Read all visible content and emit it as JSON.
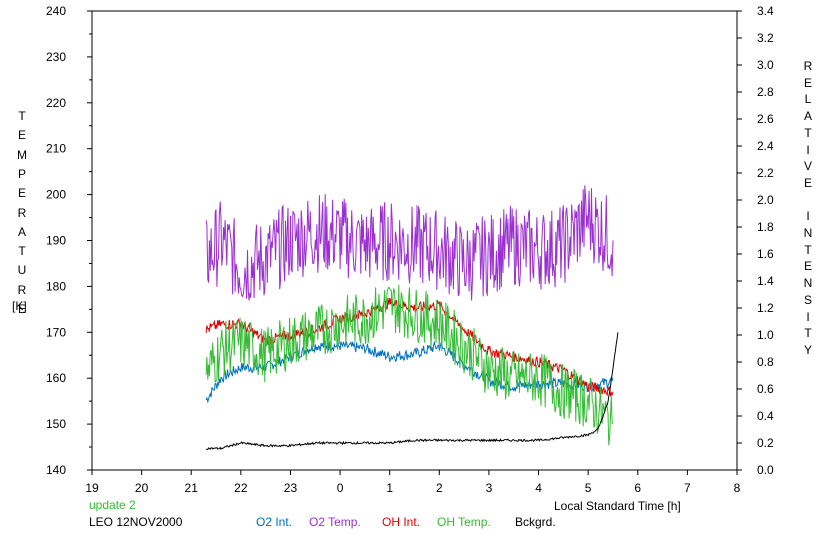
{
  "chart_data": {
    "type": "line",
    "title": "",
    "ylabel_left_letters": [
      "T",
      "E",
      "M",
      "P",
      "E",
      "R",
      "A",
      "T",
      "U",
      "R",
      "E"
    ],
    "ylabel_left_unit": "[K]",
    "ylabel_right_letters": [
      "R",
      "E",
      "L",
      "A",
      "T",
      "I",
      "V",
      "E",
      "",
      "I",
      "N",
      "T",
      "E",
      "N",
      "S",
      "I",
      "T",
      "Y"
    ],
    "xlabel": "Local Standard Time [h]",
    "x_ticks": [
      "19",
      "20",
      "21",
      "22",
      "23",
      "0",
      "1",
      "2",
      "3",
      "4",
      "5",
      "6",
      "7",
      "8"
    ],
    "xlim": [
      19,
      32
    ],
    "y_left_ticks": [
      "140",
      "150",
      "160",
      "170",
      "180",
      "190",
      "200",
      "210",
      "220",
      "230",
      "240"
    ],
    "ylim_left": [
      140,
      240
    ],
    "y_right_ticks": [
      "0.0",
      "0.2",
      "0.4",
      "0.6",
      "0.8",
      "1.0",
      "1.2",
      "1.4",
      "1.6",
      "1.8",
      "2.0",
      "2.2",
      "2.4",
      "2.6",
      "2.8",
      "3.0",
      "3.2",
      "3.4"
    ],
    "ylim_right": [
      0,
      3.4
    ],
    "grid": false,
    "series": [
      {
        "name": "O2 Int.",
        "axis": "right",
        "color": "#0070c0",
        "x": [
          21.3,
          21.6,
          22.0,
          22.5,
          23.0,
          23.5,
          24.0,
          24.5,
          25.0,
          25.5,
          26.0,
          26.5,
          27.0,
          27.5,
          28.0,
          28.5,
          29.0,
          29.5
        ],
        "values": [
          0.52,
          0.68,
          0.76,
          0.76,
          0.84,
          0.92,
          0.92,
          0.9,
          0.84,
          0.86,
          0.92,
          0.78,
          0.66,
          0.62,
          0.64,
          0.64,
          0.62,
          0.66
        ]
      },
      {
        "name": "O2 Temp.",
        "axis": "left",
        "color": "#9b30d0",
        "x": [
          21.3,
          21.6,
          22.0,
          22.5,
          23.0,
          23.5,
          24.0,
          24.5,
          25.0,
          25.5,
          26.0,
          26.5,
          27.0,
          27.5,
          28.0,
          28.5,
          29.0,
          29.5
        ],
        "values": [
          186,
          190,
          184,
          186,
          190,
          192,
          191,
          189,
          190,
          189,
          188,
          185,
          187,
          189,
          188,
          189,
          195,
          190
        ]
      },
      {
        "name": "OH Int.",
        "axis": "right",
        "color": "#dd0000",
        "x": [
          21.3,
          21.6,
          22.0,
          22.5,
          23.0,
          23.5,
          24.0,
          24.5,
          25.0,
          25.5,
          26.0,
          26.5,
          27.0,
          27.5,
          28.0,
          28.5,
          29.0,
          29.5
        ],
        "values": [
          1.04,
          1.08,
          1.08,
          0.96,
          1.0,
          1.04,
          1.12,
          1.16,
          1.24,
          1.2,
          1.22,
          1.04,
          0.88,
          0.84,
          0.8,
          0.74,
          0.62,
          0.58
        ]
      },
      {
        "name": "OH Temp.",
        "axis": "left",
        "color": "#33bb33",
        "x": [
          21.3,
          21.6,
          22.0,
          22.5,
          23.0,
          23.5,
          24.0,
          24.5,
          25.0,
          25.5,
          26.0,
          26.5,
          27.0,
          27.5,
          28.0,
          28.5,
          29.0,
          29.5
        ],
        "values": [
          161,
          166,
          168,
          165,
          168,
          170,
          172,
          173,
          176,
          174,
          172,
          167,
          162,
          160,
          160,
          157,
          155,
          150
        ]
      },
      {
        "name": "Bckgrd.",
        "axis": "right",
        "color": "#000000",
        "x": [
          21.3,
          21.6,
          22.0,
          22.5,
          23.0,
          23.5,
          24.0,
          24.5,
          25.0,
          25.5,
          26.0,
          26.5,
          27.0,
          27.5,
          28.0,
          28.5,
          29.0,
          29.2,
          29.4,
          29.5,
          29.6
        ],
        "values": [
          0.16,
          0.16,
          0.2,
          0.18,
          0.18,
          0.2,
          0.2,
          0.2,
          0.2,
          0.22,
          0.22,
          0.22,
          0.22,
          0.22,
          0.22,
          0.24,
          0.26,
          0.3,
          0.5,
          0.75,
          1.02
        ]
      }
    ]
  },
  "annotations": {
    "update": "update 2",
    "update_color": "#33bb33",
    "station": "LEO 12NOV2000"
  },
  "legend": [
    {
      "label": "O2 Int.",
      "color": "#0070c0"
    },
    {
      "label": "O2 Temp.",
      "color": "#9b30d0"
    },
    {
      "label": "OH Int.",
      "color": "#dd0000"
    },
    {
      "label": "OH Temp.",
      "color": "#33bb33"
    },
    {
      "label": "Bckgrd.",
      "color": "#000000"
    }
  ]
}
